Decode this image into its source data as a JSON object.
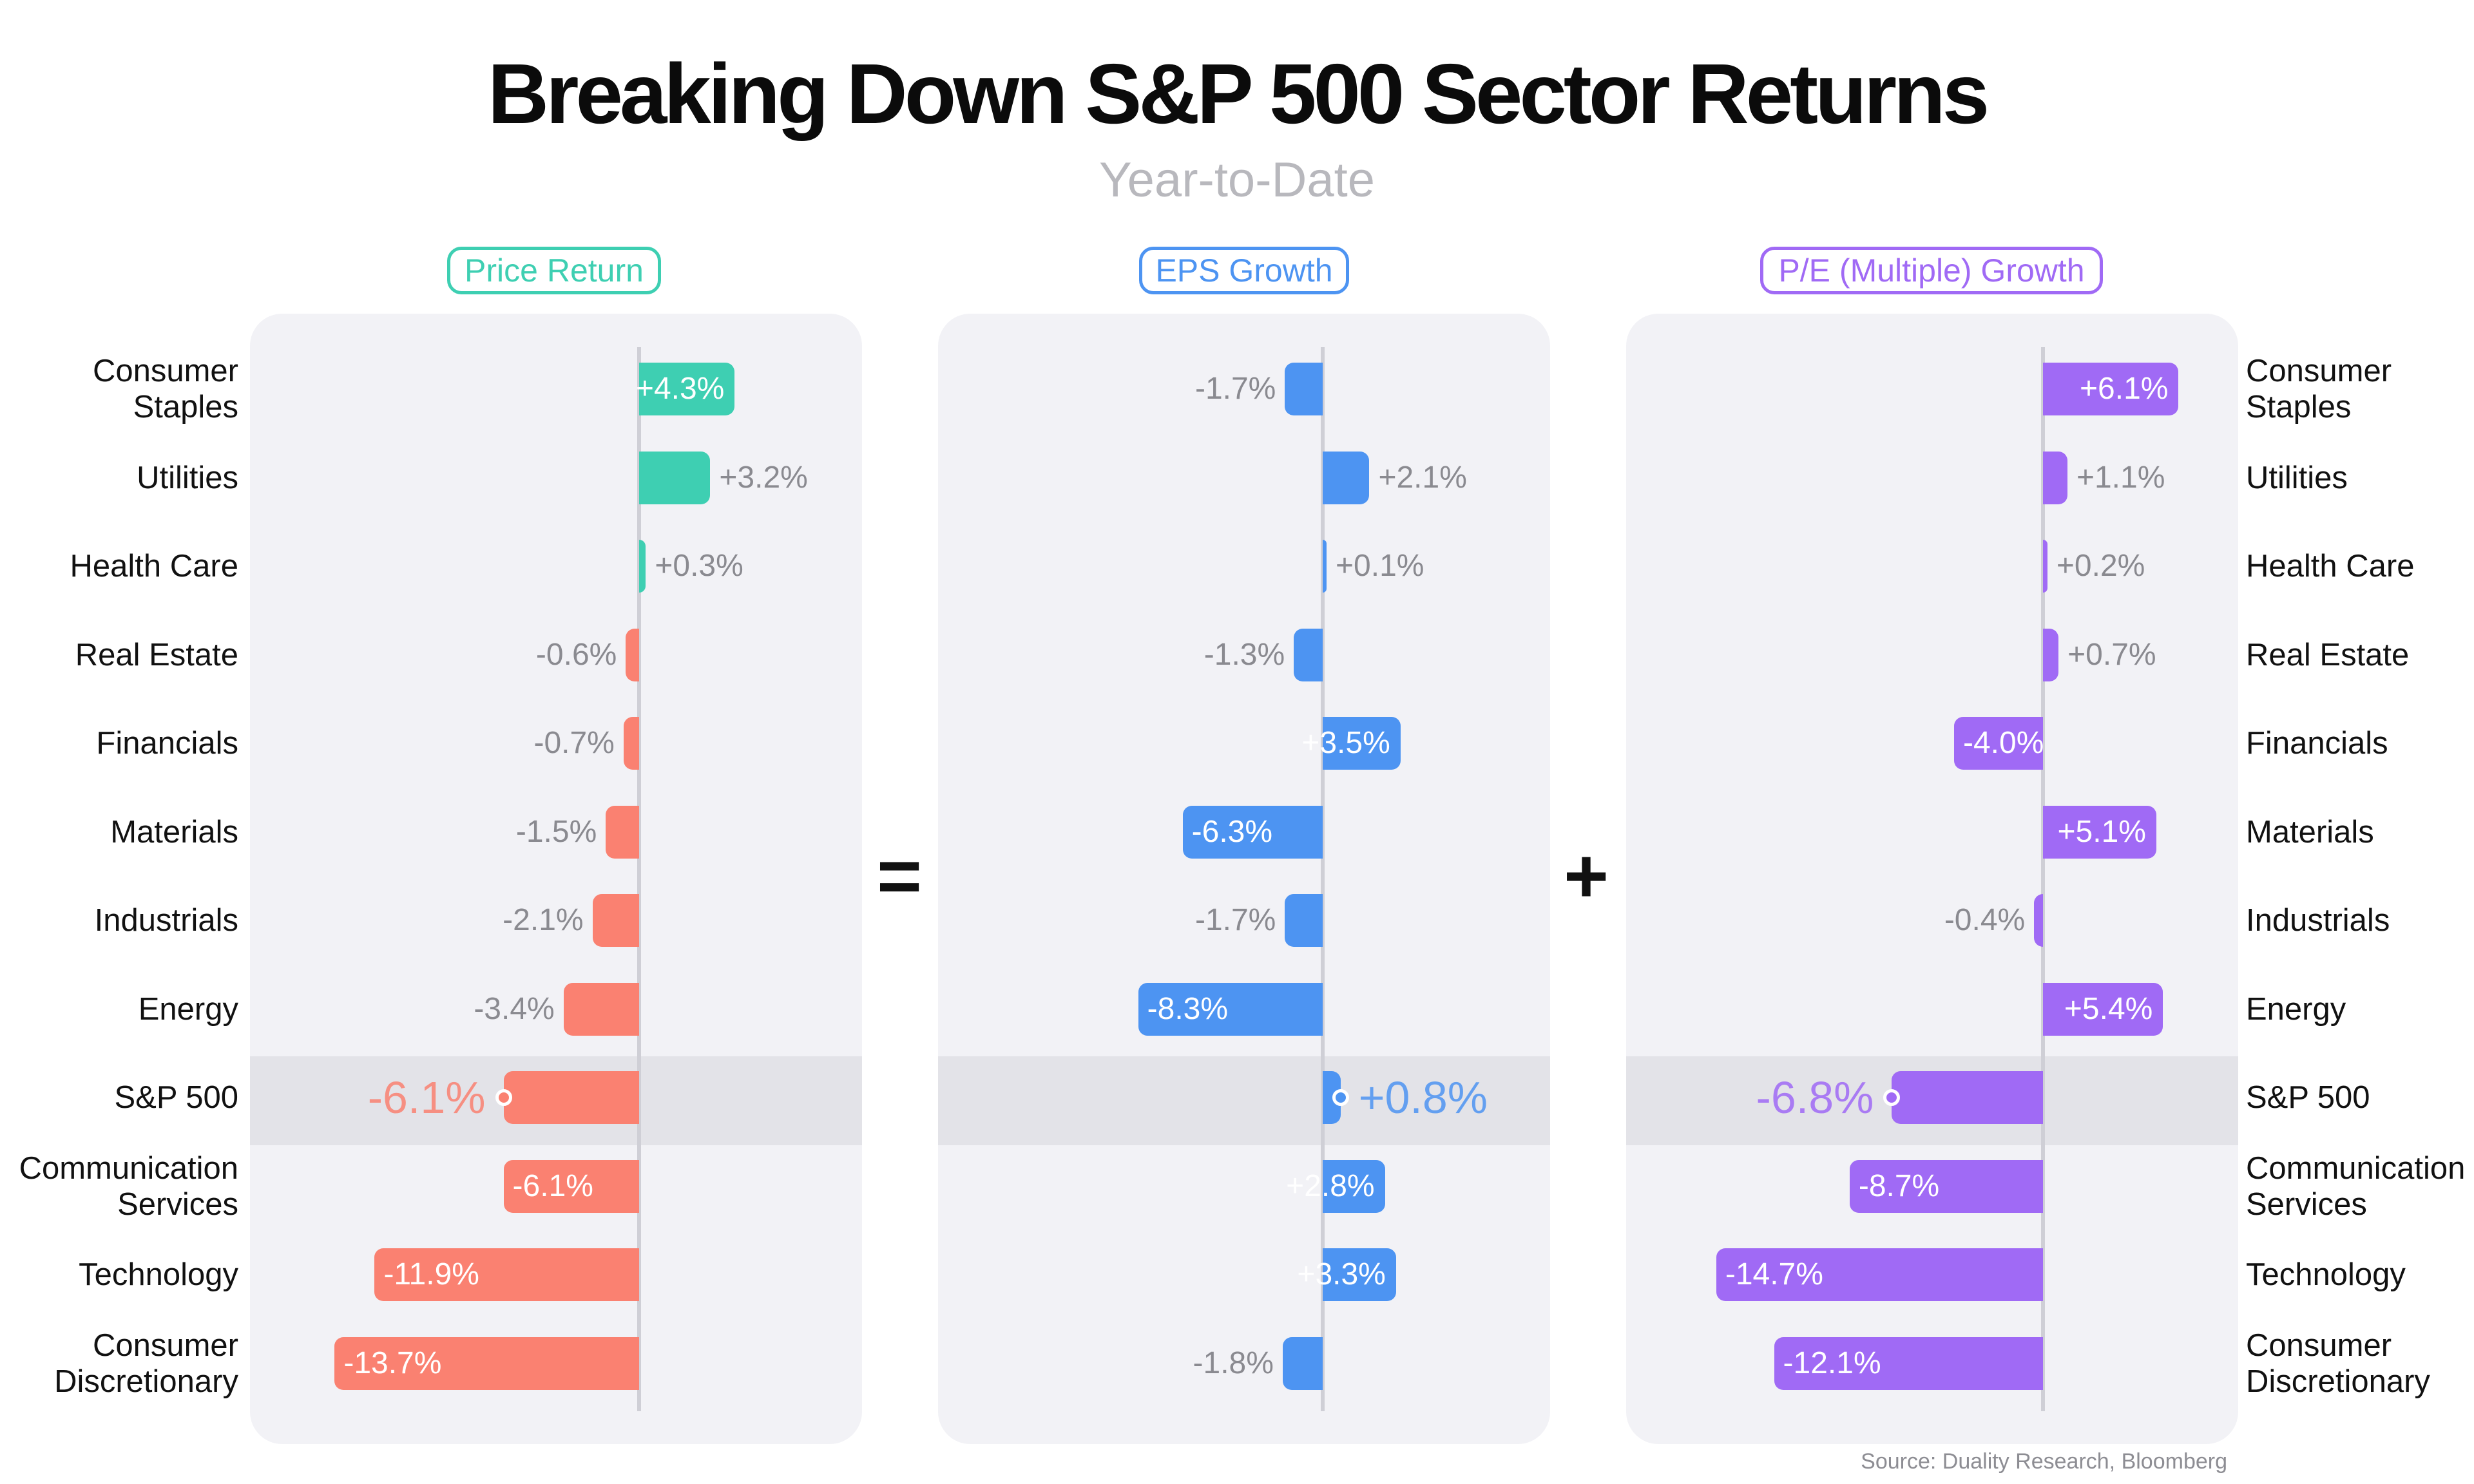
{
  "title": "Breaking Down S&P 500 Sector Returns",
  "subtitle": "Year-to-Date",
  "operators": {
    "equals": "=",
    "plus": "+"
  },
  "source": "Source: Duality Research, Bloomberg",
  "colors": {
    "price_pos": "#3ecfb2",
    "price_neg": "#fa8171",
    "eps": "#4d94f2",
    "pe": "#a06af5",
    "muted_text": "#8a8a90",
    "panel_bg": "#f2f2f6",
    "highlight_bg": "#e3e3e8"
  },
  "chart_data": {
    "type": "bar",
    "orientation": "horizontal",
    "categories": [
      "Consumer\nStaples",
      "Utilities",
      "Health Care",
      "Real Estate",
      "Financials",
      "Materials",
      "Industrials",
      "Energy",
      "S&P 500",
      "Communication\nServices",
      "Technology",
      "Consumer\nDiscretionary"
    ],
    "highlight_category": "S&P 500",
    "series": [
      {
        "name": "Price Return",
        "values": [
          4.3,
          3.2,
          0.3,
          -0.6,
          -0.7,
          -1.5,
          -2.1,
          -3.4,
          -6.1,
          -6.1,
          -11.9,
          -13.7
        ],
        "labels": [
          "+4.3%",
          "+3.2%",
          "+0.3%",
          "-0.6%",
          "-0.7%",
          "-1.5%",
          "-2.1%",
          "-3.4%",
          "-6.1%",
          "-6.1%",
          "-11.9%",
          "-13.7%"
        ]
      },
      {
        "name": "EPS Growth",
        "values": [
          -1.7,
          2.1,
          0.1,
          -1.3,
          3.5,
          -6.3,
          -1.7,
          -8.3,
          0.8,
          2.8,
          3.3,
          -1.8
        ],
        "labels": [
          "-1.7%",
          "+2.1%",
          "+0.1%",
          "-1.3%",
          "+3.5%",
          "-6.3%",
          "-1.7%",
          "-8.3%",
          "+0.8%",
          "+2.8%",
          "+3.3%",
          "-1.8%"
        ]
      },
      {
        "name": "P/E (Multiple) Growth",
        "values": [
          6.1,
          1.1,
          0.2,
          0.7,
          -4.0,
          5.1,
          -0.4,
          5.4,
          -6.8,
          -8.7,
          -14.7,
          -12.1
        ],
        "labels": [
          "+6.1%",
          "+1.1%",
          "+0.2%",
          "+0.7%",
          "-4.0%",
          "+5.1%",
          "-0.4%",
          "+5.4%",
          "-6.8%",
          "-8.7%",
          "-14.7%",
          "-12.1%"
        ]
      }
    ],
    "xlim": [
      -15,
      7
    ],
    "grid": false,
    "legend": "panel titles above each panel"
  }
}
